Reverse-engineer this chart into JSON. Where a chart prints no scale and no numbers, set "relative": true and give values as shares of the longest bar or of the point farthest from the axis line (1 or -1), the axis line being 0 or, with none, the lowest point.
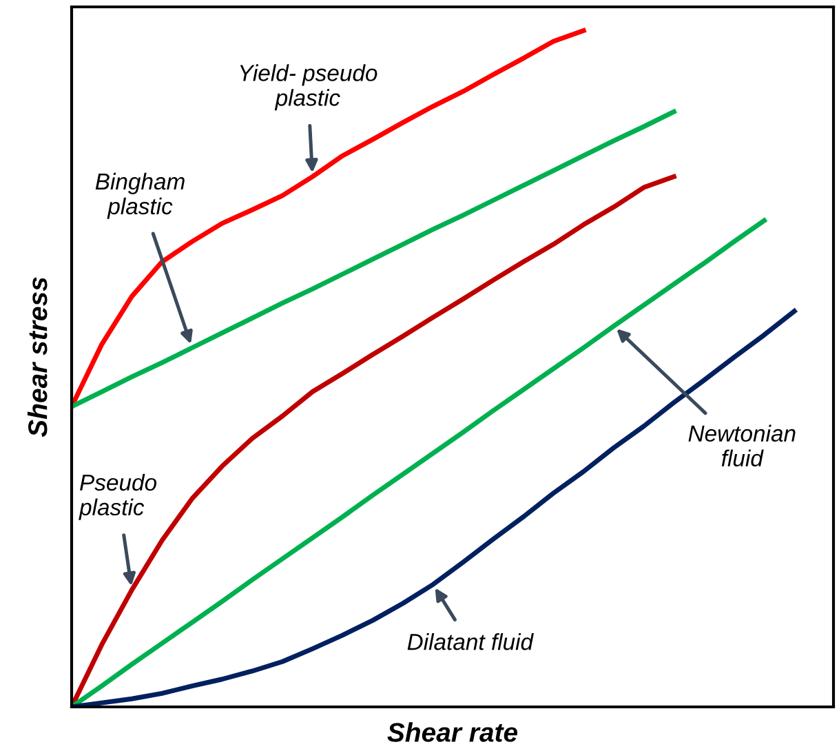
{
  "chart_data": {
    "type": "line",
    "relative": true,
    "xlabel": "Shear rate",
    "ylabel": "Shear stress",
    "categories": [
      null,
      null,
      null,
      null,
      null,
      null,
      null,
      null,
      null,
      null,
      null,
      null,
      null,
      null,
      null,
      null,
      null,
      null,
      null,
      null,
      null,
      null,
      null,
      null,
      null
    ],
    "series": [
      {
        "color": "#ff0000",
        "values": [
          0.444,
          0.536,
          0.607,
          0.658,
          0.688,
          0.715,
          0.735,
          0.756,
          0.784,
          0.815,
          0.839,
          0.864,
          0.888,
          0.91,
          0.935,
          0.959,
          0.984,
          1.0,
          null,
          null,
          null,
          null,
          null,
          null,
          null
        ]
      },
      {
        "color": "#00b050",
        "values": [
          0.444,
          0.466,
          0.488,
          0.509,
          0.531,
          0.553,
          0.575,
          0.597,
          0.618,
          0.64,
          0.662,
          0.684,
          0.706,
          0.727,
          0.749,
          0.771,
          0.793,
          0.815,
          0.837,
          0.858,
          0.88,
          null,
          null,
          null,
          null
        ]
      },
      {
        "color": "#c00000",
        "values": [
          0,
          0.092,
          0.173,
          0.246,
          0.308,
          0.356,
          0.397,
          0.43,
          0.466,
          0.493,
          0.521,
          0.548,
          0.576,
          0.603,
          0.631,
          0.658,
          0.684,
          0.713,
          0.739,
          0.768,
          0.784,
          null,
          null,
          null,
          null
        ]
      },
      {
        "color": "#00b050",
        "values": [
          0,
          0.031,
          0.063,
          0.094,
          0.125,
          0.156,
          0.188,
          0.219,
          0.25,
          0.281,
          0.313,
          0.344,
          0.375,
          0.406,
          0.438,
          0.469,
          0.5,
          0.531,
          0.563,
          0.594,
          0.625,
          0.656,
          0.688,
          0.719,
          null
        ]
      },
      {
        "color": "#002060",
        "values": [
          0,
          0.006,
          0.012,
          0.02,
          0.031,
          0.041,
          0.053,
          0.067,
          0.086,
          0.106,
          0.128,
          0.153,
          0.181,
          0.214,
          0.248,
          0.281,
          0.316,
          0.348,
          0.383,
          0.415,
          0.45,
          0.483,
          0.517,
          0.55,
          0.585
        ]
      }
    ],
    "annotations": [
      "Yield- pseudo\nplastic",
      "Bingham\nplastic",
      "Pseudo\nplastic",
      "Newtonian\nfluid",
      "Dilatant fluid"
    ],
    "marker": "none",
    "line_style": "solid"
  }
}
